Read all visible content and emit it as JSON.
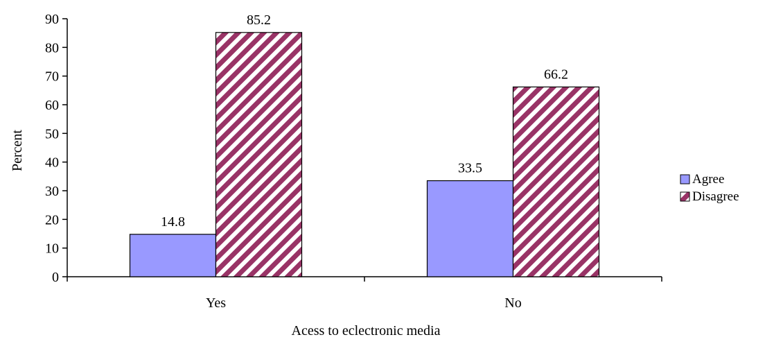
{
  "chart_data": {
    "type": "bar",
    "categories": [
      "Yes",
      "No"
    ],
    "series": [
      {
        "name": "Agree",
        "values": [
          14.8,
          33.5
        ],
        "color": "#9999ff",
        "fill": "solid"
      },
      {
        "name": "Disagree",
        "values": [
          85.2,
          66.2
        ],
        "color": "#993366",
        "fill": "diagonal-stripes"
      }
    ],
    "data_labels": [
      [
        "14.8",
        "33.5"
      ],
      [
        "85.2",
        "66.2"
      ]
    ],
    "title": "",
    "xlabel": "Acess to eclectronic media",
    "ylabel": "Percent",
    "ylim": [
      0,
      90
    ],
    "yticks": [
      "0",
      "10",
      "20",
      "30",
      "40",
      "50",
      "60",
      "70",
      "80",
      "90"
    ],
    "grid": false,
    "legend": "right"
  }
}
